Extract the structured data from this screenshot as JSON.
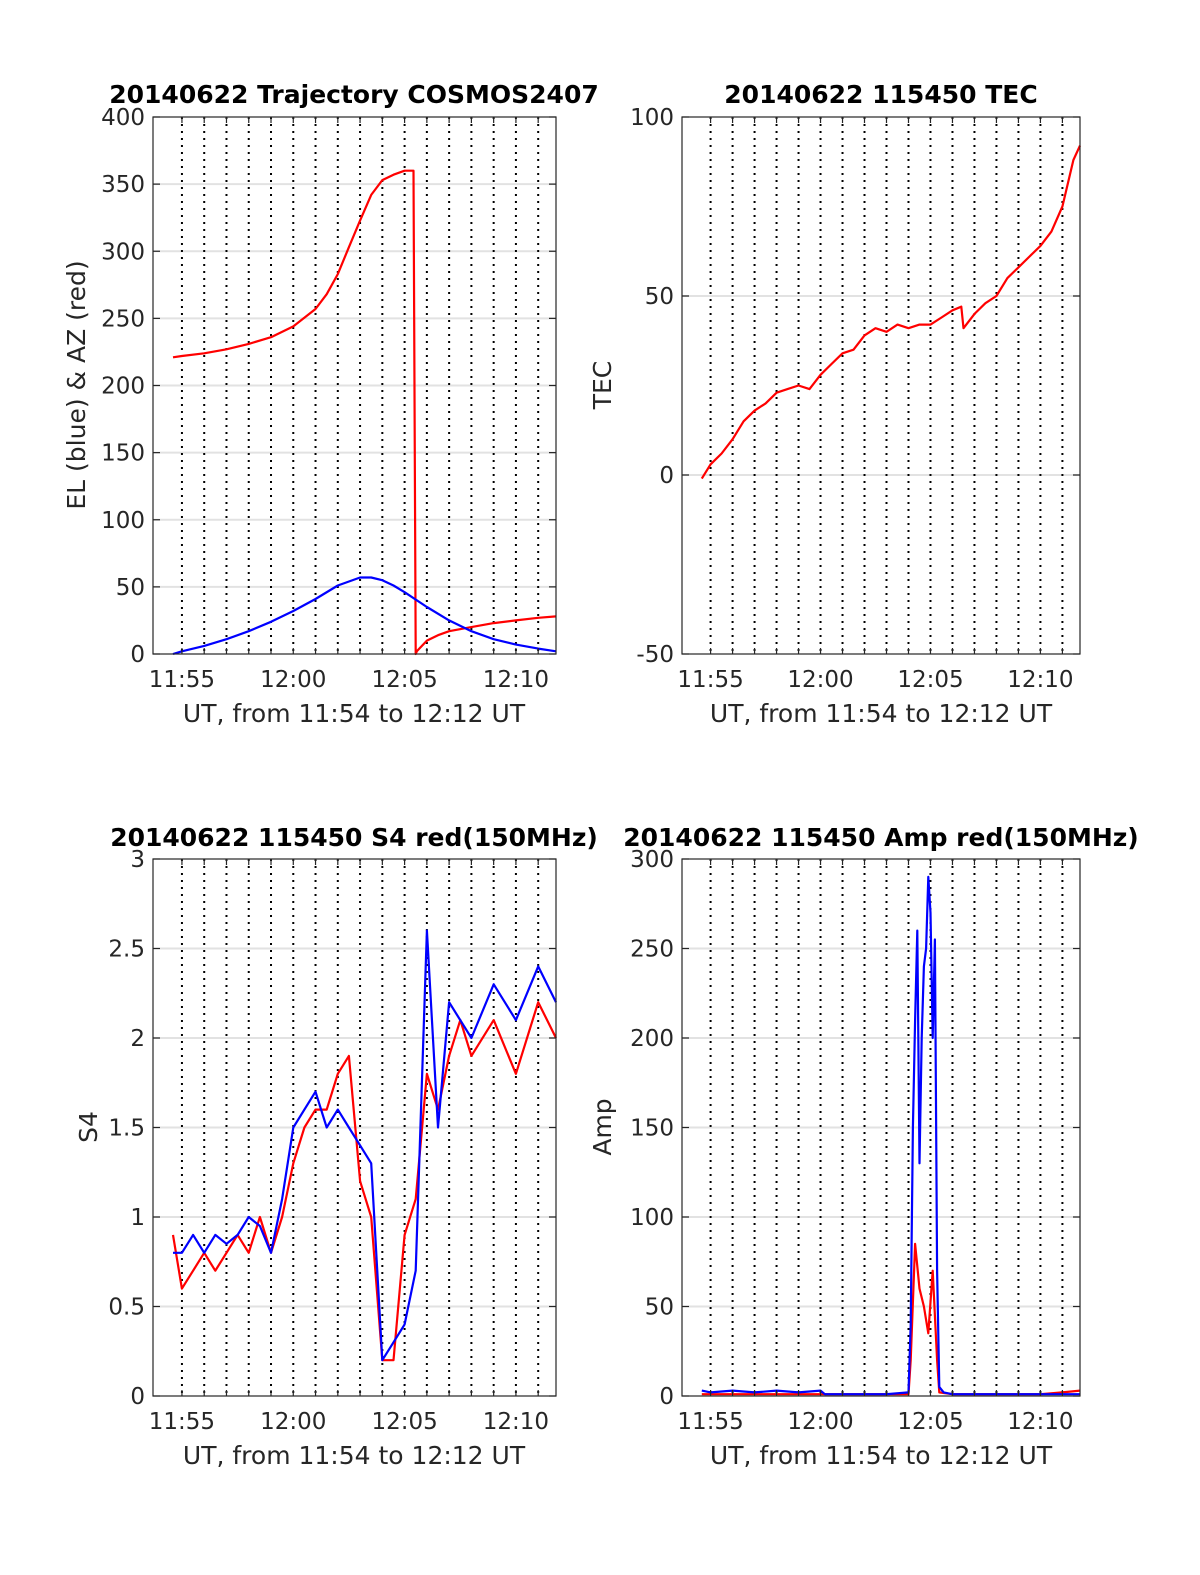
{
  "figure": {
    "line_colors": {
      "red": "#ff0000",
      "blue": "#0000ff"
    }
  },
  "chart_data": [
    {
      "id": "trajectory",
      "type": "line",
      "title": "20140622 Trajectory COSMOS2407",
      "xlabel": "UT, from 11:54 to 12:12 UT",
      "ylabel": "EL (blue) & AZ (red)",
      "xlim_min": [
        -0.3,
        17.8
      ],
      "ylim": [
        0,
        400
      ],
      "yticks": [
        "0",
        "50",
        "100",
        "150",
        "200",
        "250",
        "300",
        "350",
        "400"
      ],
      "xtick_labels": [
        {
          "x": 1,
          "label": "11:55"
        },
        {
          "x": 6,
          "label": "12:00"
        },
        {
          "x": 11,
          "label": "12:05"
        },
        {
          "x": 16,
          "label": "12:10"
        }
      ],
      "vgrid_minutes": [
        1,
        2,
        3,
        4,
        5,
        6,
        7,
        8,
        9,
        10,
        11,
        12,
        13,
        14,
        15,
        16,
        17
      ],
      "grid": true,
      "series": [
        {
          "color": "red",
          "x": [
            0.6,
            1,
            2,
            3,
            4,
            5,
            6,
            7,
            7.5,
            8,
            8.5,
            9,
            9.5,
            10,
            10.5,
            11,
            11.4,
            11.5,
            11.55,
            12,
            12.5,
            13,
            14,
            15,
            16,
            17,
            17.8
          ],
          "y": [
            221,
            222,
            224,
            227,
            231,
            236,
            244,
            257,
            268,
            283,
            303,
            323,
            342,
            353,
            357,
            360,
            360,
            0,
            2,
            10,
            14,
            17,
            20,
            23,
            25,
            27,
            28
          ]
        },
        {
          "color": "blue",
          "x": [
            0.6,
            1,
            2,
            3,
            4,
            5,
            6,
            7,
            8,
            9,
            9.5,
            10,
            10.5,
            11,
            12,
            13,
            14,
            15,
            16,
            17,
            17.8
          ],
          "y": [
            0,
            2,
            6,
            11,
            17,
            24,
            32,
            41,
            51,
            57,
            57,
            55,
            51,
            46,
            35,
            25,
            17,
            11,
            7,
            4,
            2
          ]
        }
      ]
    },
    {
      "id": "tec",
      "type": "line",
      "title": "20140622 115450 TEC",
      "xlabel": "UT, from 11:54 to 12:12 UT",
      "ylabel": "TEC",
      "xlim_min": [
        -0.3,
        17.8
      ],
      "ylim": [
        -50,
        100
      ],
      "yticks": [
        "-50",
        "0",
        "50",
        "100"
      ],
      "xtick_labels": [
        {
          "x": 1,
          "label": "11:55"
        },
        {
          "x": 6,
          "label": "12:00"
        },
        {
          "x": 11,
          "label": "12:05"
        },
        {
          "x": 16,
          "label": "12:10"
        }
      ],
      "vgrid_minutes": [
        1,
        2,
        3,
        4,
        5,
        6,
        7,
        8,
        9,
        10,
        11,
        12,
        13,
        14,
        15,
        16,
        17
      ],
      "grid": true,
      "series": [
        {
          "color": "red",
          "x": [
            0.6,
            0.8,
            1,
            1.5,
            2,
            2.5,
            3,
            3.5,
            4,
            4.5,
            5,
            5.5,
            6,
            6.5,
            7,
            7.5,
            8,
            8.5,
            9,
            9.5,
            10,
            10.5,
            11,
            11.5,
            12,
            12.4,
            12.5,
            13,
            13.5,
            14,
            14.5,
            15,
            15.5,
            16,
            16.5,
            17,
            17.5,
            17.8
          ],
          "y": [
            -1,
            1,
            3,
            6,
            10,
            15,
            18,
            20,
            23,
            24,
            25,
            24,
            28,
            31,
            34,
            35,
            39,
            41,
            40,
            42,
            41,
            42,
            42,
            44,
            46,
            47,
            41,
            45,
            48,
            50,
            55,
            58,
            61,
            64,
            68,
            75,
            88,
            92
          ]
        }
      ]
    },
    {
      "id": "s4",
      "type": "line",
      "title": "20140622 115450 S4 red(150MHz)",
      "xlabel": "UT, from 11:54 to 12:12 UT",
      "ylabel": "S4",
      "xlim_min": [
        -0.3,
        17.8
      ],
      "ylim": [
        0,
        3
      ],
      "yticks": [
        "0",
        "0.5",
        "1",
        "1.5",
        "2",
        "2.5",
        "3"
      ],
      "xtick_labels": [
        {
          "x": 1,
          "label": "11:55"
        },
        {
          "x": 6,
          "label": "12:00"
        },
        {
          "x": 11,
          "label": "12:05"
        },
        {
          "x": 16,
          "label": "12:10"
        }
      ],
      "vgrid_minutes": [
        1,
        2,
        3,
        4,
        5,
        6,
        7,
        8,
        9,
        10,
        11,
        12,
        13,
        14,
        15,
        16,
        17
      ],
      "grid": true,
      "series": [
        {
          "color": "red",
          "x": [
            0.6,
            1,
            1.5,
            2,
            2.5,
            3,
            3.5,
            4,
            4.5,
            5,
            5.5,
            6,
            6.5,
            7,
            7.5,
            8,
            8.5,
            9,
            9.5,
            10,
            10.5,
            11,
            11.5,
            12,
            12.5,
            13,
            13.5,
            14,
            15,
            16,
            17,
            17.8
          ],
          "y": [
            0.9,
            0.6,
            0.7,
            0.8,
            0.7,
            0.8,
            0.9,
            0.8,
            1.0,
            0.8,
            1.0,
            1.3,
            1.5,
            1.6,
            1.6,
            1.8,
            1.9,
            1.2,
            1.0,
            0.2,
            0.2,
            0.9,
            1.1,
            1.8,
            1.6,
            1.9,
            2.1,
            1.9,
            2.1,
            1.8,
            2.2,
            2.0
          ]
        },
        {
          "color": "blue",
          "x": [
            0.6,
            1,
            1.5,
            2,
            2.5,
            3,
            3.5,
            4,
            4.5,
            5,
            5.5,
            6,
            6.5,
            7,
            7.5,
            8,
            8.5,
            9,
            9.5,
            10,
            10.5,
            11,
            11.5,
            12,
            12.5,
            13,
            14,
            15,
            16,
            17,
            17.8
          ],
          "y": [
            0.8,
            0.8,
            0.9,
            0.8,
            0.9,
            0.85,
            0.9,
            1.0,
            0.95,
            0.8,
            1.1,
            1.5,
            1.6,
            1.7,
            1.5,
            1.6,
            1.5,
            1.4,
            1.3,
            0.2,
            0.3,
            0.4,
            0.7,
            2.6,
            1.5,
            2.2,
            2.0,
            2.3,
            2.1,
            2.4,
            2.2
          ]
        }
      ]
    },
    {
      "id": "amp",
      "type": "line",
      "title": "20140622 115450 Amp red(150MHz)",
      "xlabel": "UT, from 11:54 to 12:12 UT",
      "ylabel": "Amp",
      "xlim_min": [
        -0.3,
        17.8
      ],
      "ylim": [
        0,
        300
      ],
      "yticks": [
        "0",
        "50",
        "100",
        "150",
        "200",
        "250",
        "300"
      ],
      "xtick_labels": [
        {
          "x": 1,
          "label": "11:55"
        },
        {
          "x": 6,
          "label": "12:00"
        },
        {
          "x": 11,
          "label": "12:05"
        },
        {
          "x": 16,
          "label": "12:10"
        }
      ],
      "vgrid_minutes": [
        1,
        2,
        3,
        4,
        5,
        6,
        7,
        8,
        9,
        10,
        11,
        12,
        13,
        14,
        15,
        16,
        17
      ],
      "grid": true,
      "series": [
        {
          "color": "red",
          "x": [
            0.6,
            2,
            4,
            6,
            8,
            10.0,
            10.1,
            10.3,
            10.5,
            10.7,
            10.9,
            11.1,
            11.3,
            11.4,
            12,
            14,
            16,
            17,
            17.8
          ],
          "y": [
            1,
            1,
            1,
            1,
            1,
            1,
            20,
            85,
            60,
            50,
            35,
            70,
            20,
            2,
            1,
            1,
            1,
            2,
            3
          ]
        },
        {
          "color": "blue",
          "x": [
            0.6,
            1,
            2,
            3,
            4,
            5,
            6,
            6.2,
            7,
            8,
            9,
            10.0,
            10.1,
            10.2,
            10.3,
            10.4,
            10.5,
            10.6,
            10.7,
            10.8,
            10.9,
            11.0,
            11.1,
            11.2,
            11.3,
            11.4,
            11.6,
            12,
            14,
            16,
            17.8
          ],
          "y": [
            3,
            2,
            3,
            2,
            3,
            2,
            3,
            1,
            1,
            1,
            1,
            2,
            40,
            150,
            210,
            260,
            130,
            200,
            240,
            250,
            290,
            270,
            200,
            255,
            70,
            5,
            2,
            1,
            1,
            1,
            1
          ]
        }
      ]
    }
  ]
}
